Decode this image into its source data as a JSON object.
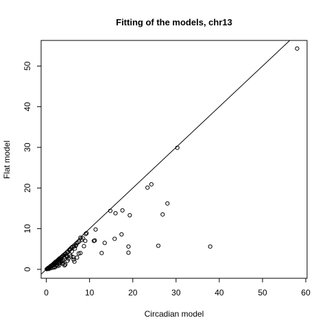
{
  "chart_data": {
    "type": "scatter",
    "title": "Fitting of the models, chr13",
    "xlabel": "Circadian model",
    "ylabel": "Flat model",
    "xlim": [
      -1.2,
      60.3
    ],
    "ylim": [
      -2.2,
      56.3
    ],
    "xticks": [
      0,
      10,
      20,
      30,
      40,
      50,
      60
    ],
    "yticks": [
      0,
      10,
      20,
      30,
      40,
      50
    ],
    "grid": false,
    "reference_line": {
      "intercept": 0,
      "slope": 1
    },
    "points": [
      [
        58.0,
        54.3
      ],
      [
        30.3,
        29.9
      ],
      [
        24.3,
        20.9
      ],
      [
        23.4,
        20.1
      ],
      [
        28.0,
        16.2
      ],
      [
        26.9,
        13.5
      ],
      [
        19.3,
        13.3
      ],
      [
        17.6,
        14.5
      ],
      [
        16.0,
        13.8
      ],
      [
        14.8,
        14.4
      ],
      [
        17.4,
        8.6
      ],
      [
        15.8,
        7.5
      ],
      [
        13.5,
        6.5
      ],
      [
        12.8,
        4.0
      ],
      [
        19.0,
        5.6
      ],
      [
        19.0,
        4.1
      ],
      [
        25.9,
        5.8
      ],
      [
        37.9,
        5.6
      ],
      [
        11.4,
        9.8
      ],
      [
        11.2,
        7.1
      ],
      [
        11.0,
        7.0
      ],
      [
        9.3,
        8.9
      ],
      [
        9.1,
        8.7
      ],
      [
        9.0,
        7.0
      ],
      [
        8.7,
        5.7
      ],
      [
        8.5,
        7.6
      ],
      [
        7.9,
        7.8
      ],
      [
        7.9,
        4.0
      ],
      [
        7.5,
        3.9
      ],
      [
        7.3,
        6.6
      ],
      [
        7.0,
        6.4
      ],
      [
        6.9,
        6.0
      ],
      [
        6.6,
        5.1
      ],
      [
        6.5,
        1.9
      ],
      [
        6.3,
        2.4
      ],
      [
        6.2,
        3.0
      ],
      [
        6.0,
        5.5
      ],
      [
        5.8,
        5.3
      ],
      [
        5.6,
        5.0
      ],
      [
        5.5,
        3.6
      ],
      [
        5.3,
        4.7
      ],
      [
        5.1,
        2.6
      ],
      [
        5.0,
        4.4
      ],
      [
        4.8,
        4.2
      ],
      [
        4.7,
        3.2
      ],
      [
        4.5,
        3.9
      ],
      [
        4.4,
        1.2
      ],
      [
        4.3,
        3.7
      ],
      [
        4.1,
        3.0
      ],
      [
        4.0,
        3.5
      ],
      [
        3.9,
        2.2
      ],
      [
        3.8,
        3.3
      ],
      [
        3.6,
        3.1
      ],
      [
        3.5,
        1.9
      ],
      [
        3.4,
        2.9
      ],
      [
        3.3,
        2.6
      ],
      [
        3.2,
        1.5
      ],
      [
        3.1,
        2.7
      ],
      [
        3.0,
        2.3
      ],
      [
        2.9,
        2.5
      ],
      [
        2.8,
        1.8
      ],
      [
        2.7,
        2.3
      ],
      [
        2.6,
        2.1
      ],
      [
        2.5,
        1.2
      ],
      [
        2.4,
        2.0
      ],
      [
        2.3,
        1.7
      ],
      [
        2.2,
        1.9
      ],
      [
        2.1,
        1.4
      ],
      [
        2.0,
        1.7
      ],
      [
        1.9,
        1.5
      ],
      [
        1.8,
        1.2
      ],
      [
        1.7,
        1.4
      ],
      [
        1.6,
        1.1
      ],
      [
        1.5,
        1.2
      ],
      [
        1.4,
        0.9
      ],
      [
        1.3,
        1.0
      ],
      [
        1.2,
        0.8
      ],
      [
        1.1,
        0.9
      ],
      [
        1.0,
        0.6
      ],
      [
        0.9,
        0.7
      ],
      [
        0.8,
        0.5
      ],
      [
        0.7,
        0.5
      ],
      [
        0.6,
        0.3
      ],
      [
        0.5,
        0.4
      ],
      [
        0.4,
        0.2
      ],
      [
        0.3,
        0.2
      ],
      [
        0.2,
        0.1
      ],
      [
        0.1,
        0.05
      ],
      [
        5.9,
        4.4
      ],
      [
        4.9,
        2.1
      ],
      [
        4.2,
        1.0
      ],
      [
        3.7,
        2.0
      ],
      [
        6.8,
        5.8
      ],
      [
        7.6,
        6.9
      ],
      [
        5.4,
        4.9
      ],
      [
        3.0,
        1.0
      ],
      [
        2.0,
        0.5
      ],
      [
        1.5,
        0.4
      ],
      [
        2.6,
        0.8
      ],
      [
        3.9,
        1.4
      ],
      [
        4.6,
        3.4
      ],
      [
        5.7,
        3.2
      ],
      [
        6.4,
        5.6
      ],
      [
        7.1,
        2.9
      ],
      [
        8.2,
        7.2
      ],
      [
        3.3,
        2.0
      ],
      [
        2.3,
        1.0
      ],
      [
        1.1,
        0.3
      ],
      [
        0.6,
        0.1
      ],
      [
        1.8,
        0.6
      ],
      [
        2.9,
        1.5
      ],
      [
        4.8,
        3.0
      ]
    ]
  }
}
